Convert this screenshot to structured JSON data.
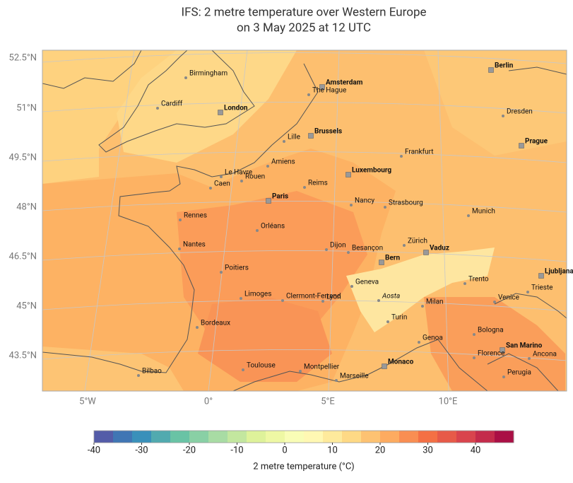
{
  "title": [
    "IFS: 2 metre temperature over Western Europe",
    "on 3 May 2025 at 12 UTC"
  ],
  "lat_labels": [
    "52.5°N",
    "51°N",
    "49.5°N",
    "48°N",
    "46.5°N",
    "45°N",
    "43.5°N"
  ],
  "lon_labels": [
    "5°W",
    "0°",
    "5°E",
    "10°E"
  ],
  "cities": [
    {
      "name": "Birmingham"
    },
    {
      "name": "Cardiff"
    },
    {
      "name": "London",
      "capital": true
    },
    {
      "name": "Amsterdam",
      "capital": true
    },
    {
      "name": "The Hague"
    },
    {
      "name": "Berlin",
      "capital": true
    },
    {
      "name": "Dresden"
    },
    {
      "name": "Brussels",
      "capital": true
    },
    {
      "name": "Lille"
    },
    {
      "name": "Prague",
      "capital": true
    },
    {
      "name": "Frankfurt"
    },
    {
      "name": "Luxembourg",
      "capital": true
    },
    {
      "name": "Le Havre"
    },
    {
      "name": "Amiens"
    },
    {
      "name": "Rouen"
    },
    {
      "name": "Caen"
    },
    {
      "name": "Reims"
    },
    {
      "name": "Paris",
      "capital": true
    },
    {
      "name": "Nancy"
    },
    {
      "name": "Strasbourg"
    },
    {
      "name": "Munich"
    },
    {
      "name": "Rennes"
    },
    {
      "name": "Orléans"
    },
    {
      "name": "Zürich"
    },
    {
      "name": "Dijon"
    },
    {
      "name": "Besançon"
    },
    {
      "name": "Vaduz",
      "capital": true
    },
    {
      "name": "Nantes"
    },
    {
      "name": "Bern",
      "capital": true
    },
    {
      "name": "Ljubljana",
      "capital": true
    },
    {
      "name": "Poitiers"
    },
    {
      "name": "Geneva"
    },
    {
      "name": "Trento"
    },
    {
      "name": "Limoges"
    },
    {
      "name": "Clermont-Ferrand"
    },
    {
      "name": "Lyon"
    },
    {
      "name": "Aosta",
      "italic": true
    },
    {
      "name": "Trieste"
    },
    {
      "name": "Milan"
    },
    {
      "name": "Venice"
    },
    {
      "name": "Bordeaux"
    },
    {
      "name": "Turin"
    },
    {
      "name": "Bologna"
    },
    {
      "name": "Genoa"
    },
    {
      "name": "San Marino",
      "capital": true
    },
    {
      "name": "Florence"
    },
    {
      "name": "Ancona"
    },
    {
      "name": "Monaco",
      "capital": true
    },
    {
      "name": "Toulouse"
    },
    {
      "name": "Montpellier"
    },
    {
      "name": "Bilbao"
    },
    {
      "name": "Marseille"
    },
    {
      "name": "Perugia"
    }
  ],
  "colorbar": {
    "label": "2 metre temperature (°C)",
    "range": [
      -40,
      48
    ],
    "step": 4,
    "ticks": [
      -40,
      -30,
      -20,
      -10,
      0,
      10,
      20,
      30,
      40
    ],
    "colors": [
      "#5e4fa2",
      "#3288bd",
      "#66c2a5",
      "#abdda4",
      "#e6f598",
      "#ffffbf",
      "#fee08b",
      "#fdae61",
      "#f46d43",
      "#d53e4f",
      "#9e0142"
    ]
  }
}
